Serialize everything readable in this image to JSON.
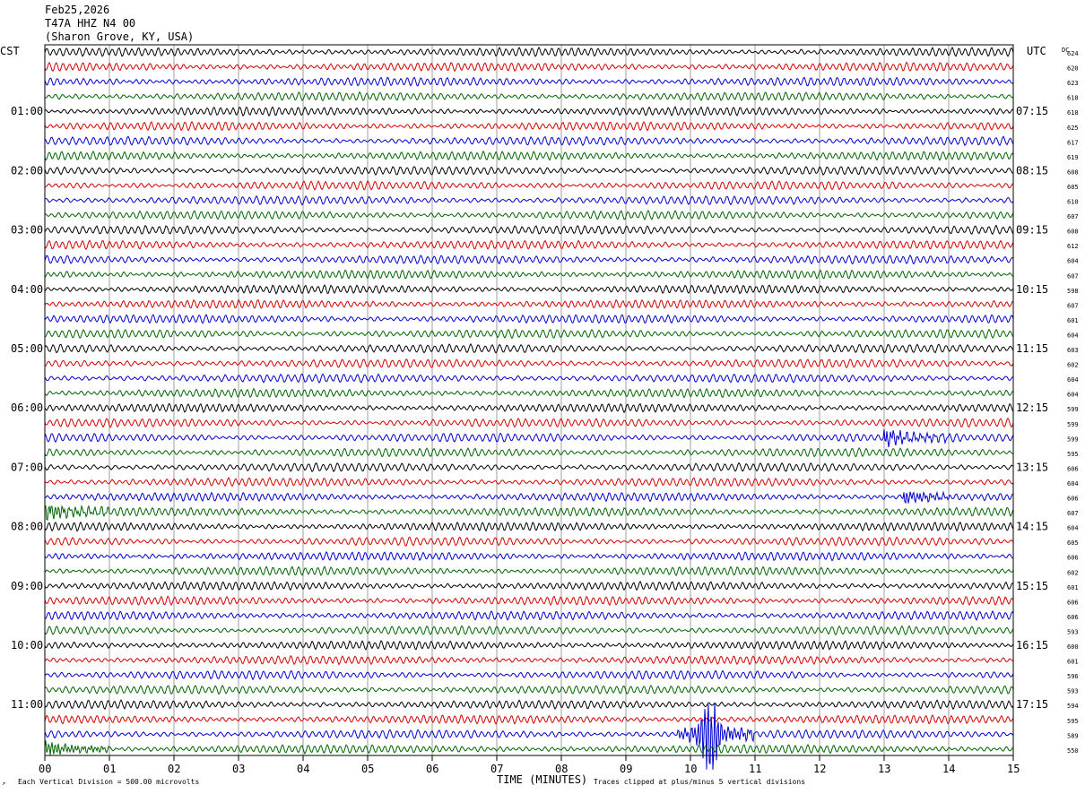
{
  "header": {
    "date": "Feb25,2026",
    "station": "T47A HHZ N4 00",
    "location": "(Sharon Grove, KY, USA)"
  },
  "labels": {
    "left_tz": "CST",
    "right_tz": "UTC",
    "dc": "DC",
    "x_axis": "TIME (MINUTES)",
    "vertical_division": "Each Vertical Division =  500.00 microvolts",
    "clipping": "Traces clipped at plus/minus 5 vertical divisions"
  },
  "colors": {
    "cycle": [
      "#000000",
      "#d40000",
      "#0000d0",
      "#006400"
    ],
    "grid": "#888888"
  },
  "chart_data": {
    "type": "line",
    "x_ticks": [
      "00",
      "01",
      "02",
      "03",
      "04",
      "05",
      "06",
      "07",
      "08",
      "09",
      "10",
      "11",
      "12",
      "13",
      "14",
      "15"
    ],
    "xlim": [
      0,
      15
    ],
    "left_hour_labels": [
      "01:00",
      "02:00",
      "03:00",
      "04:00",
      "05:00",
      "06:00",
      "07:00",
      "08:00",
      "09:00",
      "10:00",
      "11:00"
    ],
    "right_hour_labels": [
      "07:15",
      "08:15",
      "09:15",
      "10:15",
      "11:15",
      "12:15",
      "13:15",
      "14:15",
      "15:15",
      "16:15",
      "17:15"
    ],
    "traces_per_hour": 4,
    "dc_offsets": [
      624,
      620,
      623,
      618,
      618,
      625,
      617,
      619,
      608,
      605,
      610,
      607,
      608,
      612,
      604,
      607,
      598,
      607,
      601,
      604,
      603,
      602,
      604,
      604,
      599,
      599,
      599,
      595,
      606,
      604,
      606,
      607,
      604,
      605,
      606,
      602,
      601,
      606,
      606,
      593,
      600,
      601,
      596,
      593,
      594,
      595,
      589,
      550
    ],
    "events": [
      {
        "trace": 26,
        "start_min": 13.0,
        "end_min": 14.0,
        "amplitude": "medium"
      },
      {
        "trace": 30,
        "start_min": 13.3,
        "end_min": 14.0,
        "amplitude": "medium"
      },
      {
        "trace": 31,
        "start_min": 0.0,
        "end_min": 1.0,
        "amplitude": "low-frequency burst"
      },
      {
        "trace": 46,
        "start_min": 9.8,
        "end_min": 11.0,
        "amplitude": "large, clipped"
      },
      {
        "trace": 47,
        "start_min": 0.0,
        "end_min": 1.0,
        "amplitude": "burst"
      }
    ]
  }
}
